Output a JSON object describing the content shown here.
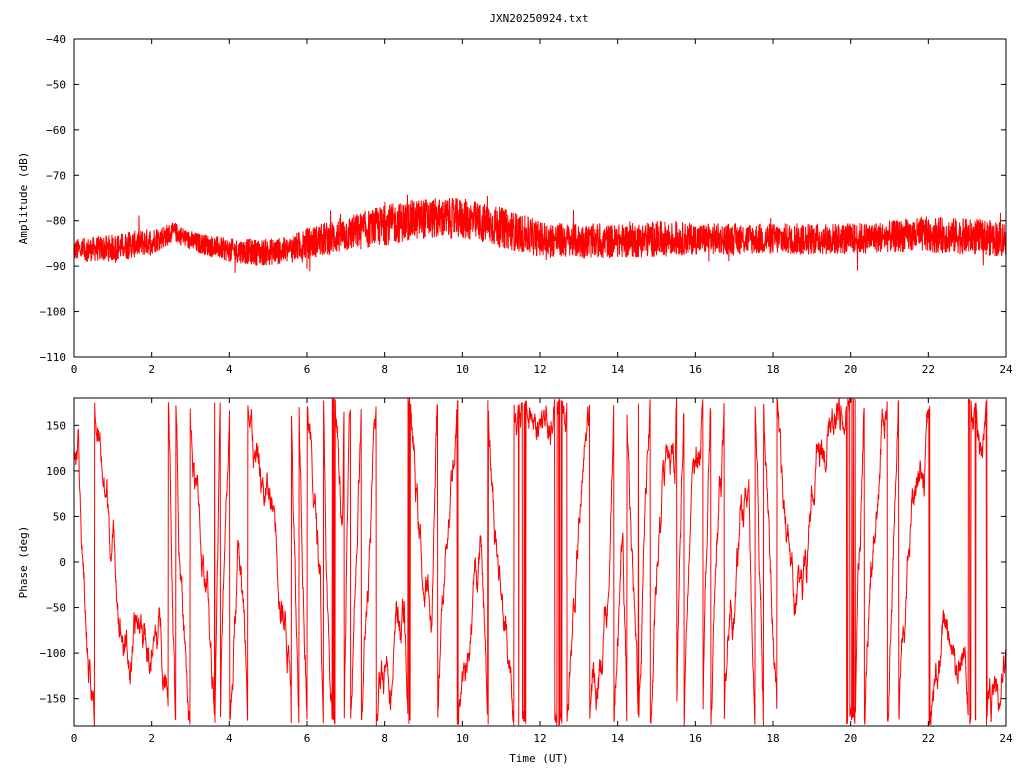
{
  "title": "JXN20250924.txt",
  "colors": {
    "series": "#ff0000",
    "axes": "#000000",
    "background": "#ffffff"
  },
  "chart_data": [
    {
      "type": "line",
      "id": "amplitude",
      "ylabel": "Amplitude (dB)",
      "xlabel": "",
      "xlim": [
        0,
        24
      ],
      "ylim": [
        -110,
        -40
      ],
      "xticks": [
        0,
        2,
        4,
        6,
        8,
        10,
        12,
        14,
        16,
        18,
        20,
        22,
        24
      ],
      "yticks": [
        -40,
        -50,
        -60,
        -70,
        -80,
        -90,
        -100,
        -110
      ],
      "ytick_labels": [
        "−40",
        "−50",
        "−60",
        "−70",
        "−80",
        "−90",
        "−100",
        "−110"
      ],
      "grid": false,
      "series": [
        {
          "x": [
            0,
            1,
            2,
            2.6,
            3,
            4,
            4.8,
            5.5,
            6,
            7,
            8,
            9,
            10,
            11,
            12,
            13,
            14,
            15,
            16,
            17,
            18,
            19,
            20,
            21,
            22,
            23,
            24
          ],
          "mean": [
            -86.5,
            -86,
            -84.5,
            -82.5,
            -84.5,
            -86.5,
            -87,
            -86.5,
            -85,
            -83,
            -81,
            -79.5,
            -79.5,
            -81.5,
            -84,
            -84.5,
            -84.5,
            -84,
            -84,
            -84,
            -84,
            -84,
            -84,
            -83.5,
            -83,
            -83.5,
            -84
          ],
          "spread": [
            2.5,
            3,
            3,
            2.2,
            2.2,
            2.6,
            3,
            3,
            3.5,
            4,
            4.5,
            4.5,
            4.5,
            4.5,
            4,
            3.8,
            3.8,
            4,
            3.5,
            3.5,
            3.5,
            3.5,
            3.5,
            3.5,
            4,
            4,
            4
          ]
        }
      ]
    },
    {
      "type": "line",
      "id": "phase",
      "ylabel": "Phase (deg)",
      "xlabel": "Time (UT)",
      "xlim": [
        0,
        24
      ],
      "ylim": [
        -180,
        180
      ],
      "xticks": [
        0,
        2,
        4,
        6,
        8,
        10,
        12,
        14,
        16,
        18,
        20,
        22,
        24
      ],
      "yticks": [
        150,
        100,
        50,
        0,
        -50,
        -100,
        -150
      ],
      "ytick_labels": [
        "150",
        "100",
        "50",
        "0",
        "−50",
        "−100",
        "−150"
      ],
      "grid": false,
      "series": [
        {
          "range_deg": [
            -180,
            180
          ],
          "wrapped": true
        }
      ]
    }
  ]
}
